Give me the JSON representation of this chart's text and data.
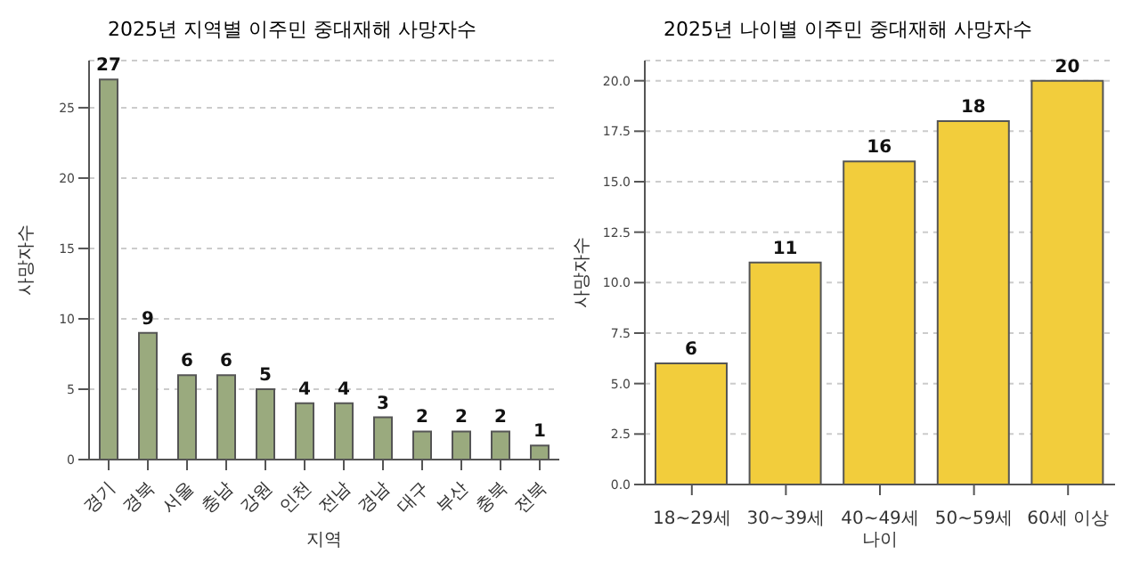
{
  "chart_data": [
    {
      "type": "bar",
      "title": "2025년 지역별 이주민 중대재해 사망자수",
      "xlabel": "지역",
      "ylabel": "사망자수",
      "categories": [
        "경기",
        "경북",
        "서울",
        "충남",
        "강원",
        "인천",
        "전남",
        "경남",
        "대구",
        "부산",
        "충북",
        "전북"
      ],
      "values": [
        27,
        9,
        6,
        6,
        5,
        4,
        4,
        3,
        2,
        2,
        2,
        1
      ],
      "color": "#9aaa7e",
      "ylim": [
        0,
        28.35
      ],
      "yticks": [
        0,
        5,
        10,
        15,
        20,
        25
      ],
      "grid": "y",
      "data_labels": true
    },
    {
      "type": "bar",
      "title": "2025년 나이별 이주민 중대재해 사망자수",
      "xlabel": "나이",
      "ylabel": "사망자수",
      "categories": [
        "18~29세",
        "30~39세",
        "40~49세",
        "50~59세",
        "60세 이상"
      ],
      "values": [
        6,
        11,
        16,
        18,
        20
      ],
      "color": "#f2cd3c",
      "ylim": [
        0,
        21
      ],
      "yticks": [
        {
          "value": 0,
          "label": "0.0"
        },
        {
          "value": 2.5,
          "label": "2.5"
        },
        {
          "value": 5,
          "label": "5.0"
        },
        {
          "value": 7.5,
          "label": "7.5"
        },
        {
          "value": 10,
          "label": "10.0"
        },
        {
          "value": 12.5,
          "label": "12.5"
        },
        {
          "value": 15,
          "label": "15.0"
        },
        {
          "value": 17.5,
          "label": "17.5"
        },
        {
          "value": 20,
          "label": "20.0"
        }
      ],
      "grid": "y",
      "data_labels": true
    }
  ]
}
